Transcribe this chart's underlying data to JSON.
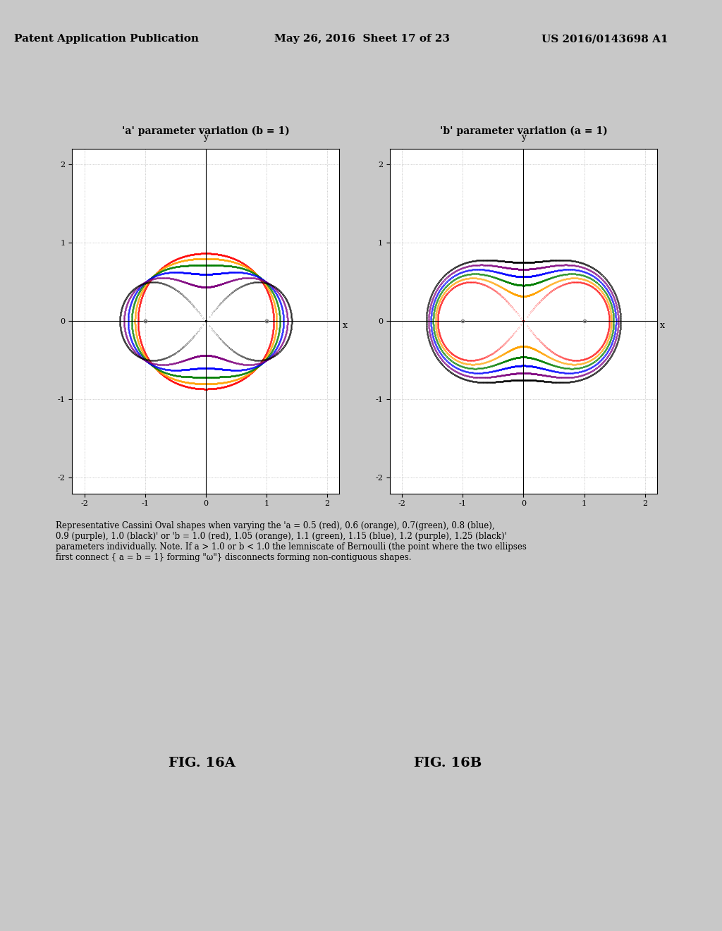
{
  "header_left": "Patent Application Publication",
  "header_center": "May 26, 2016  Sheet 17 of 23",
  "header_right": "US 2016/0143698 A1",
  "title_left": "'a' parameter variation (b = 1)",
  "title_right": "'b' parameter variation (a = 1)",
  "fig_labels": [
    "FIG. 16A",
    "FIG. 16B"
  ],
  "caption": "Representative Cassini Oval shapes when varying the 'a = 0.5 (red), 0.6 (orange), 0.7(green), 0.8 (blue),\n0.9 (purple), 1.0 (black)' or 'b = 1.0 (red), 1.05 (orange), 1.1 (green), 1.15 (blue), 1.2 (purple), 1.25 (black)'\nparameters individually. Note. If a > 1.0 or b < 1.0 the lemniscate of Bernoulli (the point where the two ellipses\nfirst connect { a = b = 1} forming \"ω\"} disconnects forming non-contiguous shapes.",
  "a_values": [
    0.5,
    0.6,
    0.7,
    0.8,
    0.9,
    1.0
  ],
  "b_fixed": 1.0,
  "b_values": [
    1.0,
    1.05,
    1.1,
    1.15,
    1.2,
    1.25
  ],
  "a_fixed": 1.0,
  "colors": [
    "red",
    "orange",
    "green",
    "blue",
    "purple",
    "black"
  ],
  "axis_lim": [
    -2.2,
    2.2
  ],
  "tick_vals": [
    -2,
    -1,
    0,
    1,
    2
  ],
  "background_color": "#ffffff",
  "outer_bg": "#d8d8d8"
}
